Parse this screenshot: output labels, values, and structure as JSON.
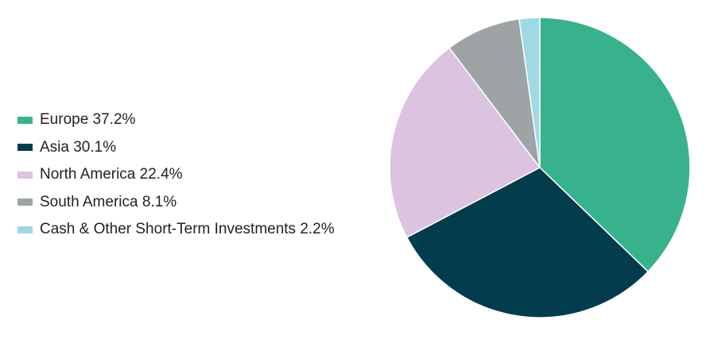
{
  "chart_data": {
    "type": "pie",
    "title": "",
    "slices": [
      {
        "label": "Europe",
        "value": 37.2,
        "display": "Europe 37.2%",
        "color": "#38B28D"
      },
      {
        "label": "Asia",
        "value": 30.1,
        "display": "Asia 30.1%",
        "color": "#033C4C"
      },
      {
        "label": "North America",
        "value": 22.4,
        "display": "North America 22.4%",
        "color": "#DCC3DF"
      },
      {
        "label": "South America",
        "value": 8.1,
        "display": "South America 8.1%",
        "color": "#9EA3A5"
      },
      {
        "label": "Cash & Other Short-Term Investments",
        "value": 2.2,
        "display": "Cash & Other Short-Term Investments 2.2%",
        "color": "#9FD9E4"
      }
    ],
    "start_angle": "12 o'clock",
    "direction": "clockwise",
    "legend_position": "left"
  }
}
